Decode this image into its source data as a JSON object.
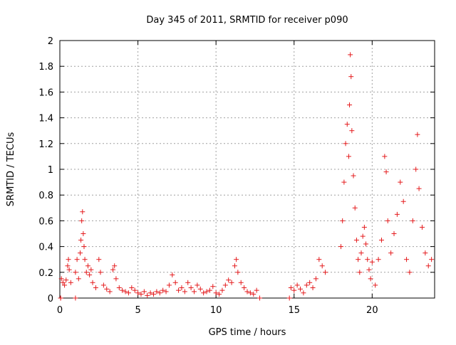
{
  "chart_data": {
    "type": "scatter",
    "title": "Day 345 of 2011, SRMTID for receiver p090",
    "xlabel": "GPS time / hours",
    "ylabel": "SRMTID / TECUs",
    "xlim": [
      0,
      24
    ],
    "ylim": [
      0,
      2
    ],
    "xticks": [
      0,
      5,
      10,
      15,
      20
    ],
    "yticks": [
      0,
      0.2,
      0.4,
      0.6,
      0.8,
      1,
      1.2,
      1.4,
      1.6,
      1.8,
      2
    ],
    "ytick_labels": [
      "0",
      "0.2",
      "0.4",
      "0.6",
      "0.8",
      "1",
      "1.2",
      "1.4",
      "1.6",
      "1.8",
      "2"
    ],
    "grid": true,
    "marker": "+",
    "series": [
      {
        "name": "SRMTID",
        "color": "#e41a1c",
        "points": [
          [
            0.05,
            0.0
          ],
          [
            0.1,
            0.15
          ],
          [
            0.2,
            0.12
          ],
          [
            0.3,
            0.1
          ],
          [
            0.4,
            0.14
          ],
          [
            0.5,
            0.25
          ],
          [
            0.55,
            0.3
          ],
          [
            0.6,
            0.22
          ],
          [
            0.7,
            0.12
          ],
          [
            0.05,
            0.0
          ],
          [
            1.0,
            0.0
          ],
          [
            1.0,
            0.2
          ],
          [
            1.1,
            0.3
          ],
          [
            1.2,
            0.15
          ],
          [
            1.3,
            0.35
          ],
          [
            1.35,
            0.45
          ],
          [
            1.4,
            0.6
          ],
          [
            1.45,
            0.67
          ],
          [
            1.5,
            0.5
          ],
          [
            1.55,
            0.4
          ],
          [
            1.6,
            0.3
          ],
          [
            1.7,
            0.2
          ],
          [
            1.8,
            0.25
          ],
          [
            1.9,
            0.18
          ],
          [
            2.0,
            0.22
          ],
          [
            2.1,
            0.12
          ],
          [
            2.3,
            0.08
          ],
          [
            2.5,
            0.3
          ],
          [
            2.6,
            0.2
          ],
          [
            2.8,
            0.1
          ],
          [
            3.0,
            0.07
          ],
          [
            3.2,
            0.05
          ],
          [
            3.4,
            0.22
          ],
          [
            3.5,
            0.25
          ],
          [
            3.6,
            0.15
          ],
          [
            3.8,
            0.08
          ],
          [
            4.0,
            0.06
          ],
          [
            4.2,
            0.05
          ],
          [
            4.4,
            0.04
          ],
          [
            4.6,
            0.08
          ],
          [
            4.8,
            0.06
          ],
          [
            5.0,
            0.04
          ],
          [
            5.2,
            0.03
          ],
          [
            5.4,
            0.05
          ],
          [
            5.6,
            0.02
          ],
          [
            5.8,
            0.04
          ],
          [
            6.0,
            0.03
          ],
          [
            6.2,
            0.05
          ],
          [
            6.4,
            0.04
          ],
          [
            6.6,
            0.06
          ],
          [
            6.8,
            0.05
          ],
          [
            7.0,
            0.1
          ],
          [
            7.2,
            0.18
          ],
          [
            7.4,
            0.12
          ],
          [
            7.6,
            0.06
          ],
          [
            7.8,
            0.08
          ],
          [
            8.0,
            0.05
          ],
          [
            8.2,
            0.12
          ],
          [
            8.4,
            0.08
          ],
          [
            8.6,
            0.05
          ],
          [
            8.8,
            0.1
          ],
          [
            9.0,
            0.07
          ],
          [
            9.2,
            0.04
          ],
          [
            9.4,
            0.05
          ],
          [
            9.6,
            0.06
          ],
          [
            9.8,
            0.09
          ],
          [
            10.0,
            0.04
          ],
          [
            10.2,
            0.03
          ],
          [
            10.4,
            0.06
          ],
          [
            10.6,
            0.1
          ],
          [
            10.8,
            0.14
          ],
          [
            11.0,
            0.12
          ],
          [
            11.2,
            0.25
          ],
          [
            11.3,
            0.3
          ],
          [
            11.4,
            0.2
          ],
          [
            11.6,
            0.12
          ],
          [
            11.8,
            0.08
          ],
          [
            12.0,
            0.05
          ],
          [
            12.2,
            0.04
          ],
          [
            12.4,
            0.03
          ],
          [
            12.6,
            0.06
          ],
          [
            12.8,
            0.0
          ],
          [
            14.7,
            0.0
          ],
          [
            14.8,
            0.08
          ],
          [
            15.0,
            0.06
          ],
          [
            15.2,
            0.1
          ],
          [
            15.4,
            0.07
          ],
          [
            15.6,
            0.04
          ],
          [
            15.8,
            0.1
          ],
          [
            16.0,
            0.12
          ],
          [
            16.2,
            0.08
          ],
          [
            16.4,
            0.15
          ],
          [
            16.6,
            0.3
          ],
          [
            16.8,
            0.25
          ],
          [
            17.0,
            0.2
          ],
          [
            18.0,
            0.4
          ],
          [
            18.1,
            0.6
          ],
          [
            18.2,
            0.9
          ],
          [
            18.3,
            1.2
          ],
          [
            18.4,
            1.35
          ],
          [
            18.5,
            1.1
          ],
          [
            18.55,
            1.5
          ],
          [
            18.6,
            1.89
          ],
          [
            18.65,
            1.72
          ],
          [
            18.7,
            1.3
          ],
          [
            18.8,
            0.95
          ],
          [
            18.9,
            0.7
          ],
          [
            19.0,
            0.45
          ],
          [
            19.1,
            0.3
          ],
          [
            19.2,
            0.2
          ],
          [
            19.3,
            0.35
          ],
          [
            19.4,
            0.48
          ],
          [
            19.5,
            0.55
          ],
          [
            19.6,
            0.42
          ],
          [
            19.7,
            0.3
          ],
          [
            19.8,
            0.22
          ],
          [
            19.9,
            0.15
          ],
          [
            20.0,
            0.28
          ],
          [
            20.2,
            0.1
          ],
          [
            20.4,
            0.3
          ],
          [
            20.6,
            0.45
          ],
          [
            20.8,
            1.1
          ],
          [
            20.9,
            0.98
          ],
          [
            21.0,
            0.6
          ],
          [
            21.2,
            0.35
          ],
          [
            21.4,
            0.5
          ],
          [
            21.6,
            0.65
          ],
          [
            21.8,
            0.9
          ],
          [
            22.0,
            0.75
          ],
          [
            22.2,
            0.3
          ],
          [
            22.4,
            0.2
          ],
          [
            22.6,
            0.6
          ],
          [
            22.8,
            1.0
          ],
          [
            22.9,
            1.27
          ],
          [
            23.0,
            0.85
          ],
          [
            23.2,
            0.55
          ],
          [
            23.4,
            0.35
          ],
          [
            23.6,
            0.25
          ],
          [
            23.8,
            0.3
          ]
        ]
      }
    ]
  }
}
